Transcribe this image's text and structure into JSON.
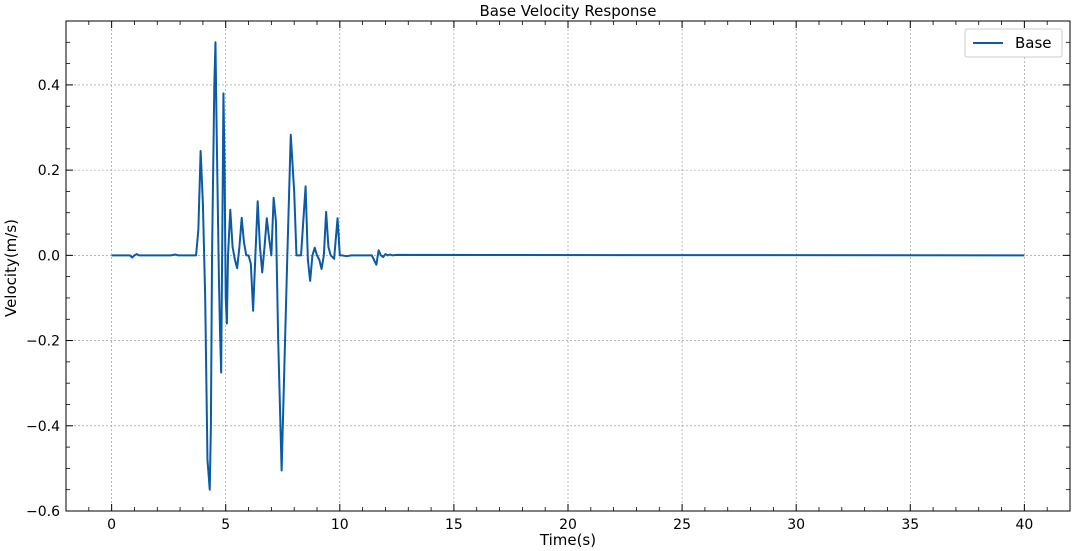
{
  "chart_data": {
    "type": "line",
    "title": "Base Velocity Response",
    "xlabel": "Time(s)",
    "ylabel": "Velocity(m/s)",
    "xlim": [
      -2,
      42
    ],
    "ylim": [
      -0.6,
      0.55
    ],
    "xticks": [
      0,
      5,
      10,
      15,
      20,
      25,
      30,
      35,
      40
    ],
    "xtick_labels": [
      "0",
      "5",
      "10",
      "15",
      "20",
      "25",
      "30",
      "35",
      "40"
    ],
    "yticks": [
      -0.6,
      -0.4,
      -0.2,
      0.0,
      0.2,
      0.4
    ],
    "ytick_labels": [
      "−0.6",
      "−0.4",
      "−0.2",
      "0.0",
      "0.2",
      "0.4"
    ],
    "grid": true,
    "legend": {
      "position": "top-right"
    },
    "series": [
      {
        "name": "Base",
        "color": "#0b5aa5",
        "points": [
          [
            0,
            0
          ],
          [
            0.8,
            0
          ],
          [
            0.9,
            -0.005
          ],
          [
            1.0,
            0
          ],
          [
            1.1,
            0.003
          ],
          [
            1.2,
            0
          ],
          [
            2.6,
            0
          ],
          [
            2.8,
            0.002
          ],
          [
            2.9,
            0
          ],
          [
            3.7,
            0
          ],
          [
            3.8,
            0.06
          ],
          [
            3.9,
            0.245
          ],
          [
            4.0,
            0.12
          ],
          [
            4.1,
            -0.1
          ],
          [
            4.2,
            -0.48
          ],
          [
            4.3,
            -0.55
          ],
          [
            4.35,
            -0.4
          ],
          [
            4.4,
            0.0
          ],
          [
            4.5,
            0.4
          ],
          [
            4.55,
            0.5
          ],
          [
            4.6,
            0.3
          ],
          [
            4.7,
            -0.05
          ],
          [
            4.75,
            -0.18
          ],
          [
            4.8,
            -0.275
          ],
          [
            4.85,
            0.05
          ],
          [
            4.9,
            0.38
          ],
          [
            4.95,
            0.2
          ],
          [
            5.0,
            -0.1
          ],
          [
            5.05,
            -0.16
          ],
          [
            5.1,
            0.0
          ],
          [
            5.2,
            0.107
          ],
          [
            5.3,
            0.02
          ],
          [
            5.4,
            -0.01
          ],
          [
            5.5,
            -0.03
          ],
          [
            5.6,
            0.02
          ],
          [
            5.7,
            0.088
          ],
          [
            5.8,
            0.03
          ],
          [
            5.9,
            0.0
          ],
          [
            6.0,
            0.0
          ],
          [
            6.1,
            -0.02
          ],
          [
            6.2,
            -0.13
          ],
          [
            6.3,
            0.0
          ],
          [
            6.4,
            0.127
          ],
          [
            6.5,
            0.02
          ],
          [
            6.6,
            -0.04
          ],
          [
            6.7,
            0.02
          ],
          [
            6.8,
            0.087
          ],
          [
            6.9,
            0.04
          ],
          [
            7.0,
            0.0
          ],
          [
            7.1,
            0.135
          ],
          [
            7.2,
            0.08
          ],
          [
            7.3,
            -0.2
          ],
          [
            7.45,
            -0.505
          ],
          [
            7.6,
            -0.2
          ],
          [
            7.7,
            0.0
          ],
          [
            7.85,
            0.283
          ],
          [
            8.0,
            0.15
          ],
          [
            8.1,
            0.0
          ],
          [
            8.2,
            0.0
          ],
          [
            8.3,
            0.0
          ],
          [
            8.5,
            0.162
          ],
          [
            8.6,
            -0.01
          ],
          [
            8.7,
            -0.06
          ],
          [
            8.8,
            0.0
          ],
          [
            8.9,
            0.018
          ],
          [
            9.0,
            0.0
          ],
          [
            9.1,
            -0.01
          ],
          [
            9.2,
            -0.032
          ],
          [
            9.3,
            0.0
          ],
          [
            9.4,
            0.102
          ],
          [
            9.5,
            0.02
          ],
          [
            9.6,
            0.0
          ],
          [
            9.75,
            -0.008
          ],
          [
            9.9,
            0.087
          ],
          [
            10.0,
            0.0
          ],
          [
            10.1,
            0.0
          ],
          [
            10.3,
            -0.002
          ],
          [
            10.5,
            0.0
          ],
          [
            11.0,
            0.0
          ],
          [
            11.4,
            0.0
          ],
          [
            11.6,
            -0.022
          ],
          [
            11.7,
            0.012
          ],
          [
            11.8,
            0.0
          ],
          [
            11.9,
            -0.004
          ],
          [
            12.0,
            0.003
          ],
          [
            12.1,
            0.0
          ],
          [
            12.2,
            0.002
          ],
          [
            12.3,
            0.0
          ],
          [
            12.5,
            0.001
          ],
          [
            40,
            0
          ]
        ]
      }
    ]
  }
}
